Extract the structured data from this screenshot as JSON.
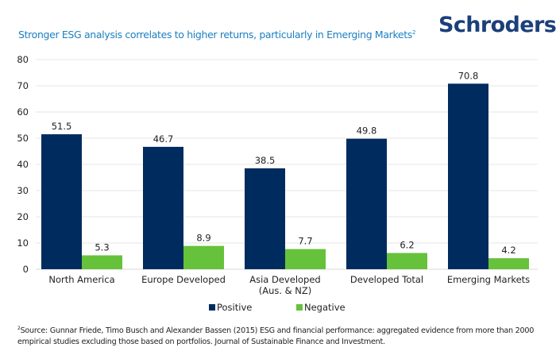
{
  "header": {
    "title": "Stronger ESG analysis correlates to higher returns, particularly in Emerging Markets",
    "title_superscript": "2",
    "logo_text": "Schroders"
  },
  "colors": {
    "title": "#1b7fc0",
    "logo": "#1c3f7a",
    "positive": "#002b5e",
    "negative": "#66c23a",
    "grid": "#e6e6e6"
  },
  "legend": {
    "position": "bottom-center",
    "items": [
      {
        "label": "Positive",
        "color": "#002b5e"
      },
      {
        "label": "Negative",
        "color": "#66c23a"
      }
    ]
  },
  "footnote": {
    "superscript": "2",
    "text": "Source: Gunnar Friede, Timo Busch and Alexander Bassen (2015) ESG and financial performance: aggregated evidence from more than 2000 empirical studies excluding those based on portfolios. Journal of Sustainable Finance and Investment."
  },
  "chart_data": {
    "type": "bar",
    "title": "Stronger ESG analysis correlates to higher returns, particularly in Emerging Markets",
    "xlabel": "",
    "ylabel": "",
    "ylim": [
      0,
      80
    ],
    "yticks": [
      0,
      10,
      20,
      30,
      40,
      50,
      60,
      70,
      80
    ],
    "grid": true,
    "legend_position": "bottom-center",
    "categories": [
      [
        "North America"
      ],
      [
        "Europe Developed"
      ],
      [
        "Asia Developed",
        "(Aus. & NZ)"
      ],
      [
        "Developed Total"
      ],
      [
        "Emerging Markets"
      ]
    ],
    "series": [
      {
        "name": "Positive",
        "color": "#002b5e",
        "values": [
          51.5,
          46.7,
          38.5,
          49.8,
          70.8
        ]
      },
      {
        "name": "Negative",
        "color": "#66c23a",
        "values": [
          5.3,
          8.9,
          7.7,
          6.2,
          4.2
        ]
      }
    ]
  }
}
